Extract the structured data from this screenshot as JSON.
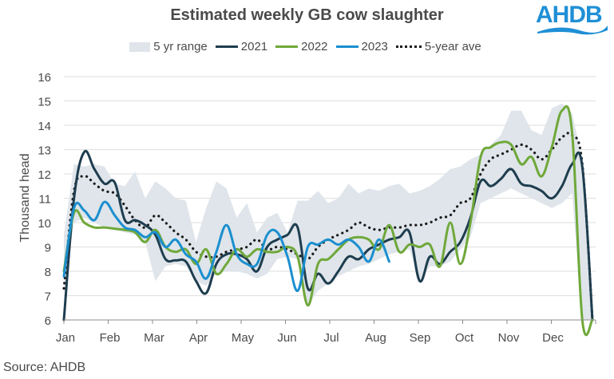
{
  "header": {
    "title": "Estimated weekly GB cow slaughter",
    "logo_text": "AHDB"
  },
  "source": "Source: AHDB",
  "colors": {
    "range": "#dfe5ea",
    "y2021": "#1e3d4f",
    "y2022": "#6fa83a",
    "y2023": "#1b8fcf",
    "avg": "#1a1a1a",
    "logo": "#1f8fd6"
  },
  "chart_data": {
    "type": "line",
    "title": "Estimated weekly GB cow slaughter",
    "xlabel": "",
    "ylabel": "Thousand head",
    "ylim": [
      6,
      16
    ],
    "yticks": [
      "6",
      "7",
      "8",
      "9",
      "10",
      "11",
      "12",
      "13",
      "14",
      "15",
      "16"
    ],
    "xticks": [
      "Jan",
      "Feb",
      "Mar",
      "Apr",
      "May",
      "Jun",
      "Jul",
      "Aug",
      "Sep",
      "Oct",
      "Nov",
      "Dec"
    ],
    "x_unit": "week",
    "grid": true,
    "legend_position": "top",
    "legend": [
      "5 yr range",
      "2021",
      "2022",
      "2023",
      "5-year ave"
    ],
    "range": {
      "name": "5 yr range",
      "low": [
        7.2,
        10.0,
        10.2,
        10.0,
        9.8,
        9.7,
        9.6,
        9.5,
        9.2,
        7.6,
        8.2,
        8.3,
        8.2,
        7.6,
        7.4,
        7.9,
        8.0,
        8.0,
        7.9,
        7.7,
        7.9,
        8.5,
        8.6,
        8.5,
        6.6,
        7.2,
        7.5,
        7.8,
        8.0,
        8.2,
        8.3,
        8.5,
        8.7,
        8.8,
        8.9,
        7.6,
        8.2,
        8.2,
        8.4,
        8.9,
        9.4,
        10.8,
        11.0,
        11.2,
        11.4,
        11.2,
        11.0,
        10.8,
        10.6,
        10.8,
        11.2,
        6.0,
        6.0
      ],
      "high": [
        9.5,
        12.4,
        12.3,
        12.4,
        12.3,
        11.6,
        11.5,
        12.1,
        11.0,
        11.7,
        11.4,
        11.0,
        10.9,
        9.2,
        10.6,
        11.7,
        11.4,
        10.2,
        10.8,
        9.6,
        10.2,
        10.4,
        9.6,
        10.9,
        10.9,
        11.3,
        10.8,
        11.0,
        11.6,
        11.2,
        11.4,
        11.3,
        11.5,
        11.6,
        11.2,
        11.3,
        11.5,
        11.8,
        12.2,
        12.3,
        12.6,
        12.8,
        13.2,
        13.6,
        14.6,
        14.6,
        13.8,
        13.6,
        14.7,
        14.9,
        14.5,
        12.6,
        6.0
      ]
    },
    "series": [
      {
        "name": "2021",
        "values": [
          6.0,
          11.0,
          12.9,
          12.2,
          11.6,
          11.65,
          10.1,
          10.1,
          9.9,
          9.5,
          8.5,
          8.45,
          8.4,
          7.6,
          7.1,
          8.3,
          8.7,
          8.7,
          8.5,
          8.0,
          9.0,
          9.3,
          9.5,
          9.8,
          7.3,
          7.9,
          7.5,
          8.0,
          8.6,
          8.5,
          8.9,
          9.1,
          9.3,
          9.4,
          9.6,
          7.6,
          8.6,
          8.3,
          8.8,
          9.2,
          10.2,
          11.7,
          11.5,
          11.8,
          12.2,
          11.6,
          11.5,
          11.3,
          11.0,
          11.5,
          12.4,
          12.3,
          6.0
        ]
      },
      {
        "name": "2022",
        "values": [
          8.0,
          10.4,
          10.0,
          9.8,
          9.8,
          9.75,
          9.7,
          9.6,
          9.2,
          9.7,
          9.0,
          8.8,
          8.9,
          8.3,
          8.9,
          7.9,
          8.3,
          8.9,
          8.6,
          8.9,
          8.8,
          8.8,
          9.0,
          8.6,
          6.6,
          8.3,
          8.5,
          8.9,
          9.3,
          9.4,
          9.3,
          8.9,
          9.9,
          8.8,
          9.1,
          9.0,
          9.1,
          8.2,
          10.0,
          8.3,
          10.0,
          12.7,
          13.1,
          13.3,
          13.2,
          12.4,
          12.7,
          11.9,
          13.1,
          14.6,
          13.7,
          6.0,
          6.0
        ]
      },
      {
        "name": "2023",
        "values": [
          7.8,
          10.6,
          10.5,
          10.1,
          10.85,
          10.3,
          9.8,
          9.7,
          9.4,
          9.6,
          9.0,
          9.3,
          8.7,
          8.4,
          7.7,
          8.8,
          9.9,
          8.7,
          8.3,
          8.3,
          9.5,
          9.6,
          8.6,
          7.2,
          9.0,
          9.1,
          9.3,
          9.1,
          9.3,
          9.0,
          8.4,
          9.3,
          8.4
        ]
      },
      {
        "name": "5-year ave",
        "values": [
          7.3,
          11.3,
          11.9,
          11.6,
          11.3,
          11.2,
          10.7,
          10.1,
          9.8,
          10.3,
          10.0,
          9.6,
          9.3,
          8.8,
          8.6,
          8.6,
          8.8,
          8.9,
          9.0,
          9.3,
          8.9,
          9.0,
          8.9,
          8.7,
          8.5,
          9.0,
          9.3,
          9.5,
          9.7,
          10.0,
          9.8,
          9.7,
          9.8,
          9.8,
          9.9,
          9.9,
          10.0,
          10.2,
          10.3,
          10.8,
          11.0,
          12.0,
          12.6,
          12.8,
          13.0,
          13.2,
          13.0,
          12.6,
          13.0,
          13.5,
          13.6,
          12.4,
          6.0
        ]
      }
    ]
  }
}
